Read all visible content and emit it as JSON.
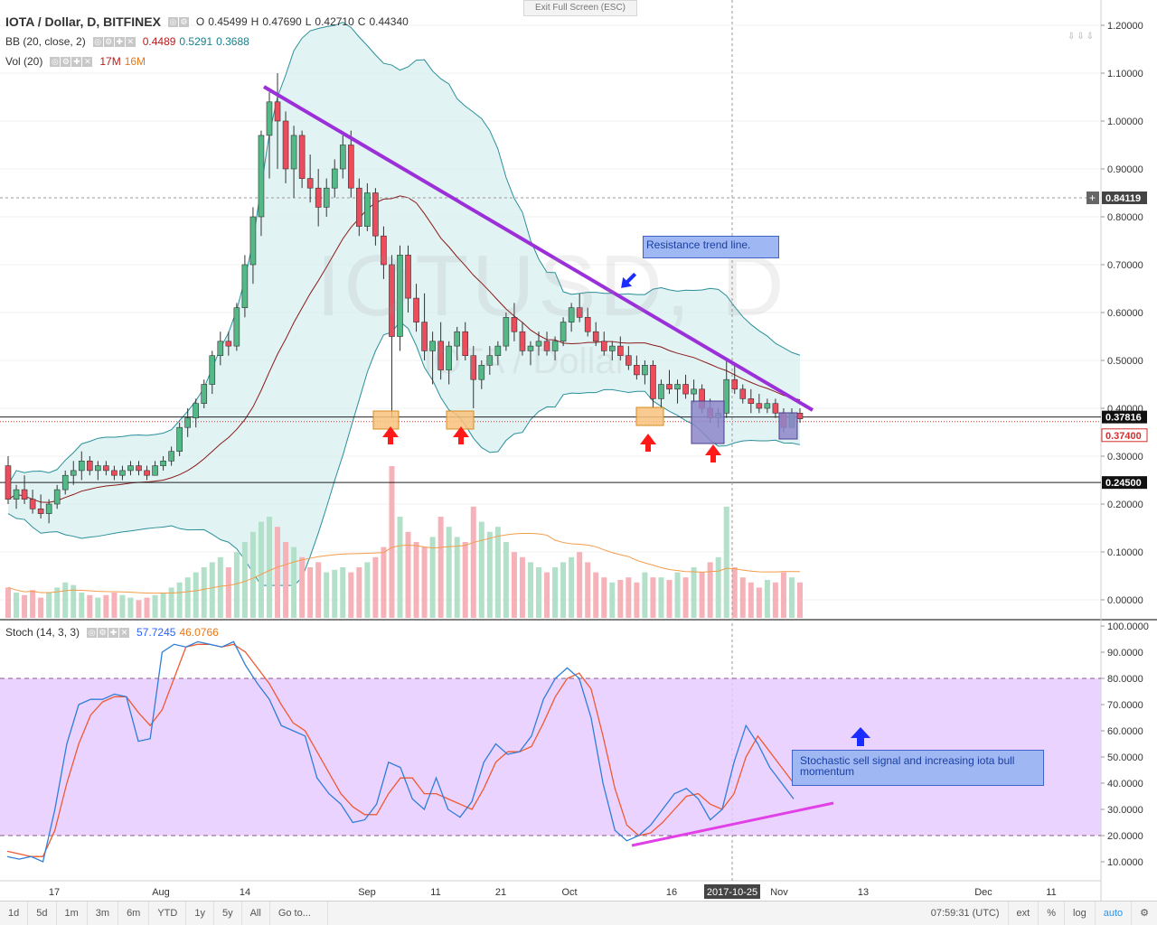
{
  "header": {
    "symbol": "IOTA / Dollar, D, BITFINEX",
    "open_label": "O",
    "open": "0.45499",
    "high_label": "H",
    "high": "0.47690",
    "low_label": "L",
    "low": "0.42710",
    "close_label": "C",
    "close": "0.44340"
  },
  "bb": {
    "label": "BB (20, close, 2)",
    "basis": "0.4489",
    "upper": "0.5291",
    "lower": "0.3688"
  },
  "vol": {
    "label": "Vol (20)",
    "value": "17M",
    "ma": "16M"
  },
  "stoch": {
    "label": "Stoch (14, 3, 3)",
    "k": "57.7245",
    "d": "46.0766"
  },
  "exit_fullscreen": "Exit Full Screen (ESC)",
  "watermark": {
    "line1": "IOTUSD, D",
    "line2": "IOTA / Dollar"
  },
  "price_axis": {
    "ticks": [
      "1.20000",
      "1.10000",
      "1.00000",
      "0.90000",
      "0.80000",
      "0.70000",
      "0.60000",
      "0.50000",
      "0.40000",
      "0.30000",
      "0.20000",
      "0.10000",
      "0.00000"
    ],
    "badges": {
      "crosshair": "0.84119",
      "last": "0.37816",
      "close": "0.37400",
      "support": "0.24500"
    }
  },
  "stoch_axis": {
    "ticks": [
      "100.0000",
      "90.0000",
      "80.0000",
      "70.0000",
      "60.0000",
      "50.0000",
      "40.0000",
      "30.0000",
      "20.0000",
      "10.0000"
    ]
  },
  "time_axis": {
    "ticks": [
      "17",
      "Aug",
      "14",
      "Sep",
      "11",
      "21",
      "Oct",
      "16",
      "Nov",
      "13",
      "Dec",
      "11"
    ],
    "crosshair_date": "2017-10-25"
  },
  "annotations": {
    "resistance": "Resistance trend line.",
    "stoch_note": "Stochastic sell signal and increasing iota bull momentum"
  },
  "toolbar": {
    "ranges": [
      "1d",
      "5d",
      "1m",
      "3m",
      "6m",
      "YTD",
      "1y",
      "5y",
      "All"
    ],
    "goto": "Go to...",
    "time": "07:59:31 (UTC)",
    "ext": "ext",
    "pct": "%",
    "log": "log",
    "auto": "auto"
  },
  "colors": {
    "up": "#53b987",
    "down": "#eb4d5c",
    "bb_basis": "#8b1a1a",
    "bb_band": "#2a8f9a",
    "bb_fill": "#d6eef0",
    "trend": "#9b30d9",
    "stoch_k": "#2f7ed8",
    "stoch_d": "#ef5a32",
    "stoch_band": "#e6c8ff",
    "lower_trend": "#e040e6"
  },
  "chart_data": {
    "type": "candlestick",
    "title": "IOTA / Dollar, D, BITFINEX",
    "ylim": [
      0,
      1.2
    ],
    "support_level": 0.245,
    "candles_ohlc": [
      [
        0.28,
        0.3,
        0.2,
        0.21
      ],
      [
        0.21,
        0.24,
        0.19,
        0.23
      ],
      [
        0.23,
        0.26,
        0.2,
        0.21
      ],
      [
        0.21,
        0.23,
        0.18,
        0.19
      ],
      [
        0.19,
        0.22,
        0.17,
        0.18
      ],
      [
        0.18,
        0.21,
        0.16,
        0.2
      ],
      [
        0.2,
        0.24,
        0.19,
        0.23
      ],
      [
        0.23,
        0.27,
        0.22,
        0.26
      ],
      [
        0.26,
        0.29,
        0.24,
        0.27
      ],
      [
        0.27,
        0.31,
        0.25,
        0.29
      ],
      [
        0.29,
        0.3,
        0.26,
        0.27
      ],
      [
        0.27,
        0.29,
        0.25,
        0.28
      ],
      [
        0.28,
        0.29,
        0.26,
        0.27
      ],
      [
        0.27,
        0.28,
        0.25,
        0.26
      ],
      [
        0.26,
        0.28,
        0.25,
        0.27
      ],
      [
        0.27,
        0.29,
        0.26,
        0.28
      ],
      [
        0.28,
        0.29,
        0.26,
        0.27
      ],
      [
        0.27,
        0.28,
        0.25,
        0.26
      ],
      [
        0.26,
        0.29,
        0.26,
        0.28
      ],
      [
        0.28,
        0.3,
        0.27,
        0.29
      ],
      [
        0.29,
        0.32,
        0.28,
        0.31
      ],
      [
        0.31,
        0.37,
        0.3,
        0.36
      ],
      [
        0.36,
        0.4,
        0.34,
        0.38
      ],
      [
        0.38,
        0.42,
        0.36,
        0.41
      ],
      [
        0.41,
        0.46,
        0.4,
        0.45
      ],
      [
        0.45,
        0.52,
        0.43,
        0.51
      ],
      [
        0.51,
        0.56,
        0.49,
        0.54
      ],
      [
        0.54,
        0.56,
        0.51,
        0.53
      ],
      [
        0.53,
        0.62,
        0.52,
        0.61
      ],
      [
        0.61,
        0.72,
        0.59,
        0.7
      ],
      [
        0.7,
        0.82,
        0.66,
        0.8
      ],
      [
        0.8,
        0.98,
        0.76,
        0.97
      ],
      [
        0.97,
        1.06,
        0.88,
        1.04
      ],
      [
        1.04,
        1.1,
        0.9,
        1.0
      ],
      [
        1.0,
        1.02,
        0.87,
        0.9
      ],
      [
        0.9,
        0.99,
        0.84,
        0.97
      ],
      [
        0.97,
        0.98,
        0.86,
        0.88
      ],
      [
        0.88,
        0.93,
        0.83,
        0.86
      ],
      [
        0.86,
        0.9,
        0.78,
        0.82
      ],
      [
        0.82,
        0.88,
        0.8,
        0.86
      ],
      [
        0.86,
        0.92,
        0.84,
        0.9
      ],
      [
        0.9,
        0.97,
        0.88,
        0.95
      ],
      [
        0.95,
        0.98,
        0.84,
        0.86
      ],
      [
        0.86,
        0.88,
        0.76,
        0.78
      ],
      [
        0.78,
        0.87,
        0.77,
        0.85
      ],
      [
        0.85,
        0.86,
        0.74,
        0.76
      ],
      [
        0.76,
        0.78,
        0.67,
        0.7
      ],
      [
        0.7,
        0.72,
        0.38,
        0.55
      ],
      [
        0.55,
        0.74,
        0.52,
        0.72
      ],
      [
        0.72,
        0.74,
        0.6,
        0.63
      ],
      [
        0.63,
        0.66,
        0.56,
        0.58
      ],
      [
        0.58,
        0.64,
        0.5,
        0.52
      ],
      [
        0.52,
        0.56,
        0.45,
        0.54
      ],
      [
        0.54,
        0.58,
        0.46,
        0.48
      ],
      [
        0.48,
        0.54,
        0.45,
        0.53
      ],
      [
        0.53,
        0.57,
        0.5,
        0.56
      ],
      [
        0.56,
        0.58,
        0.5,
        0.51
      ],
      [
        0.51,
        0.53,
        0.4,
        0.46
      ],
      [
        0.46,
        0.5,
        0.44,
        0.49
      ],
      [
        0.49,
        0.53,
        0.47,
        0.51
      ],
      [
        0.51,
        0.54,
        0.49,
        0.53
      ],
      [
        0.53,
        0.6,
        0.52,
        0.59
      ],
      [
        0.59,
        0.62,
        0.54,
        0.56
      ],
      [
        0.56,
        0.58,
        0.51,
        0.52
      ],
      [
        0.52,
        0.54,
        0.49,
        0.53
      ],
      [
        0.53,
        0.56,
        0.51,
        0.54
      ],
      [
        0.54,
        0.56,
        0.51,
        0.52
      ],
      [
        0.52,
        0.55,
        0.5,
        0.54
      ],
      [
        0.54,
        0.59,
        0.53,
        0.58
      ],
      [
        0.58,
        0.62,
        0.56,
        0.61
      ],
      [
        0.61,
        0.64,
        0.58,
        0.59
      ],
      [
        0.59,
        0.61,
        0.55,
        0.56
      ],
      [
        0.56,
        0.58,
        0.53,
        0.54
      ],
      [
        0.54,
        0.56,
        0.51,
        0.52
      ],
      [
        0.52,
        0.54,
        0.5,
        0.53
      ],
      [
        0.53,
        0.55,
        0.5,
        0.51
      ],
      [
        0.51,
        0.53,
        0.48,
        0.49
      ],
      [
        0.49,
        0.51,
        0.46,
        0.47
      ],
      [
        0.47,
        0.5,
        0.45,
        0.49
      ],
      [
        0.49,
        0.5,
        0.4,
        0.42
      ],
      [
        0.42,
        0.46,
        0.4,
        0.45
      ],
      [
        0.45,
        0.48,
        0.43,
        0.44
      ],
      [
        0.44,
        0.46,
        0.41,
        0.45
      ],
      [
        0.45,
        0.47,
        0.42,
        0.43
      ],
      [
        0.43,
        0.46,
        0.41,
        0.44
      ],
      [
        0.44,
        0.45,
        0.39,
        0.4
      ],
      [
        0.4,
        0.42,
        0.37,
        0.38
      ],
      [
        0.38,
        0.4,
        0.36,
        0.39
      ],
      [
        0.39,
        0.5,
        0.38,
        0.46
      ],
      [
        0.46,
        0.49,
        0.43,
        0.44
      ],
      [
        0.44,
        0.45,
        0.41,
        0.42
      ],
      [
        0.42,
        0.44,
        0.39,
        0.41
      ],
      [
        0.41,
        0.43,
        0.39,
        0.4
      ],
      [
        0.4,
        0.42,
        0.39,
        0.41
      ],
      [
        0.41,
        0.42,
        0.38,
        0.39
      ],
      [
        0.39,
        0.4,
        0.35,
        0.36
      ],
      [
        0.36,
        0.4,
        0.36,
        0.39
      ],
      [
        0.39,
        0.4,
        0.37,
        0.378
      ]
    ],
    "volume_millions": [
      12,
      10,
      9,
      11,
      8,
      10,
      12,
      14,
      13,
      10,
      9,
      8,
      9,
      10,
      9,
      8,
      7,
      8,
      9,
      10,
      12,
      14,
      16,
      18,
      20,
      22,
      24,
      20,
      26,
      30,
      34,
      38,
      40,
      36,
      30,
      28,
      24,
      20,
      22,
      18,
      19,
      20,
      18,
      20,
      22,
      24,
      28,
      60,
      40,
      34,
      30,
      28,
      32,
      40,
      36,
      32,
      30,
      44,
      38,
      34,
      36,
      30,
      26,
      24,
      22,
      20,
      18,
      20,
      22,
      24,
      26,
      22,
      18,
      16,
      14,
      15,
      16,
      14,
      18,
      16,
      16,
      15,
      18,
      16,
      20,
      18,
      22,
      24,
      44,
      20,
      16,
      14,
      12,
      15,
      14,
      18,
      16,
      14
    ],
    "stoch_k": [
      12,
      11,
      12,
      10,
      30,
      55,
      70,
      72,
      72,
      74,
      73,
      56,
      57,
      90,
      93,
      92,
      94,
      93,
      92,
      94,
      85,
      78,
      72,
      62,
      60,
      58,
      42,
      36,
      32,
      25,
      26,
      32,
      48,
      46,
      34,
      30,
      42,
      30,
      27,
      33,
      48,
      55,
      51,
      52,
      58,
      72,
      80,
      84,
      80,
      65,
      40,
      22,
      18,
      20,
      24,
      30,
      36,
      38,
      34,
      26,
      30,
      48,
      62,
      55,
      46,
      40,
      34
    ],
    "stoch_d": [
      14,
      13,
      12,
      12,
      22,
      40,
      55,
      66,
      71,
      73,
      73,
      67,
      62,
      68,
      80,
      92,
      93,
      93,
      92,
      93,
      90,
      84,
      78,
      70,
      63,
      60,
      52,
      44,
      36,
      31,
      28,
      28,
      36,
      42,
      42,
      36,
      36,
      34,
      32,
      30,
      38,
      48,
      52,
      52,
      54,
      63,
      73,
      80,
      82,
      76,
      58,
      38,
      24,
      20,
      21,
      25,
      30,
      35,
      36,
      32,
      30,
      36,
      50,
      58,
      52,
      46,
      40
    ],
    "stoch_bands": [
      20,
      80
    ]
  }
}
